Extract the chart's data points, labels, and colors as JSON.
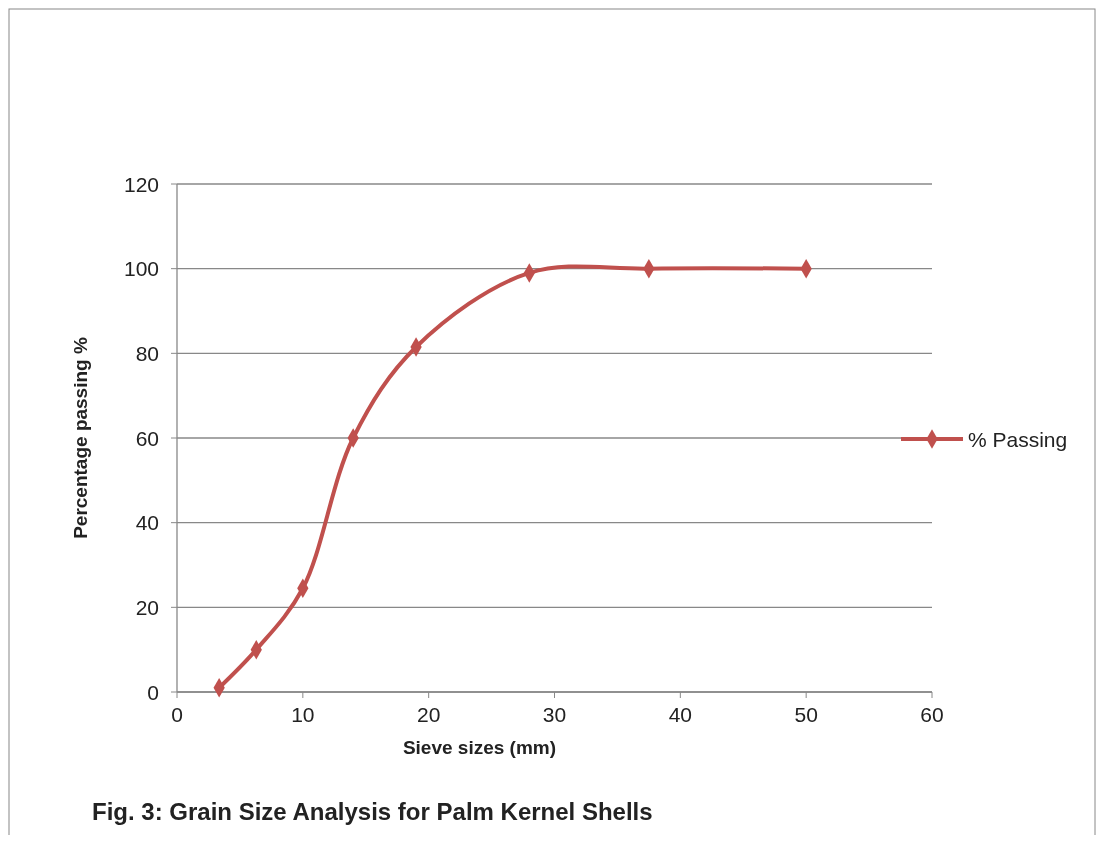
{
  "chart_data": {
    "type": "line",
    "xlabel": "Sieve sizes (mm)",
    "ylabel": "Percentage passing %",
    "annotations": [
      "Fig. 3: Grain Size Analysis for Palm Kernel Shells"
    ],
    "x": [
      3.35,
      6.3,
      10,
      14,
      19,
      28,
      37.5,
      50
    ],
    "series": [
      {
        "name": "% Passing",
        "color": "#c0504d",
        "values": [
          1,
          10,
          24.5,
          60,
          81.5,
          99,
          100,
          100
        ]
      }
    ],
    "xlim": [
      0,
      60
    ],
    "xticks": [
      0,
      10,
      20,
      30,
      40,
      50,
      60
    ],
    "ylim": [
      0,
      120
    ],
    "yticks": [
      0,
      20,
      40,
      60,
      80,
      100,
      120
    ],
    "grid": "y",
    "legend": "right",
    "marker": "diamond",
    "line_style": "solid"
  }
}
